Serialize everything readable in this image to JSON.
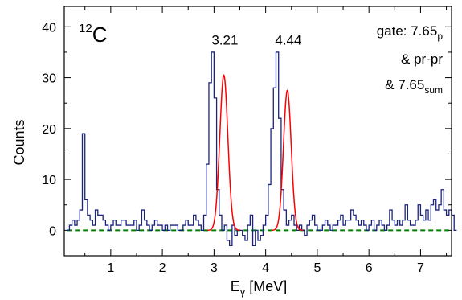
{
  "chart_data": {
    "type": "line",
    "xlabel_main": "E",
    "xlabel_sub": "γ",
    "xlabel_rest": " [MeV]",
    "ylabel": "Counts",
    "xlim": [
      0.1,
      7.6
    ],
    "ylim": [
      -5,
      44
    ],
    "xticks": [
      1,
      2,
      3,
      4,
      5,
      6,
      7
    ],
    "yticks": [
      0,
      10,
      20,
      30,
      40
    ],
    "isotope_mass": "12",
    "isotope_symbol": "C",
    "peak_labels": [
      {
        "text": "3.21",
        "x": 3.21,
        "y": 36.5
      },
      {
        "text": "4.44",
        "x": 4.44,
        "y": 36.5
      }
    ],
    "gate_lines": [
      {
        "main": "gate: 7.65",
        "sub": "p"
      },
      {
        "main": "& pr-pr",
        "sub": ""
      },
      {
        "main": "& 7.65",
        "sub": "sum"
      }
    ],
    "colors": {
      "histogram": "#1a237e",
      "fit": "#ff0000",
      "baseline": "#008000"
    },
    "histogram": {
      "bin_edges_start": 0.15,
      "bin_width": 0.05,
      "counts": [
        0,
        1,
        2,
        1,
        2,
        4,
        19,
        6,
        3,
        2,
        1,
        4,
        3,
        3,
        2,
        1,
        0,
        1,
        2,
        1,
        1,
        2,
        2,
        1,
        1,
        1,
        2,
        0,
        1,
        4,
        2,
        1,
        0,
        1,
        2,
        1,
        1,
        0,
        1,
        0,
        1,
        1,
        1,
        0,
        0,
        1,
        2,
        1,
        1,
        3,
        2,
        1,
        0,
        3,
        13,
        29,
        35,
        26,
        8,
        3,
        0,
        1,
        -2,
        -3,
        1,
        -1,
        0,
        0,
        -1,
        -2,
        1,
        3,
        -3,
        0,
        -2,
        -1,
        1,
        3,
        9,
        20,
        28,
        35,
        22,
        8,
        4,
        1,
        2,
        3,
        1,
        0,
        1,
        0,
        -1,
        1,
        2,
        3,
        1,
        0,
        0,
        1,
        2,
        1,
        0,
        1,
        1,
        2,
        3,
        1,
        2,
        2,
        4,
        3,
        2,
        1,
        2,
        1,
        0,
        1,
        2,
        0,
        1,
        2,
        1,
        0,
        1,
        4,
        2,
        1,
        2,
        1,
        2,
        5,
        2,
        1,
        1,
        2,
        5,
        3,
        2,
        4,
        2,
        5,
        6,
        4,
        5,
        8,
        4,
        3,
        4,
        3,
        0
      ]
    },
    "fit_peaks": [
      {
        "center": 3.19,
        "sigma": 0.078,
        "amplitude": 30.5
      },
      {
        "center": 4.42,
        "sigma": 0.075,
        "amplitude": 27.5
      }
    ],
    "baseline_value": 0
  }
}
